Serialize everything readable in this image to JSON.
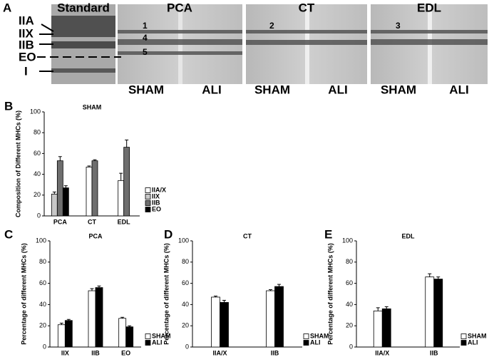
{
  "gel": {
    "panel_label": "A",
    "lanes": [
      "Standard",
      "PCA",
      "CT",
      "EDL"
    ],
    "conditions": [
      "SHAM",
      "ALI",
      "SHAM",
      "ALI",
      "SHAM",
      "ALI"
    ],
    "markers": [
      "IIA",
      "IIX",
      "IIB",
      "EO",
      "I"
    ],
    "band_numbers": [
      "1",
      "4",
      "5",
      "2",
      "3"
    ]
  },
  "chart_data": [
    {
      "type": "bar",
      "panel_label": "B",
      "title": "SHAM",
      "ylabel": "Composition of Different MHCs (%)",
      "categories": [
        "PCA",
        "CT",
        "EDL"
      ],
      "series": [
        {
          "name": "IIA/X",
          "color": "#ffffff",
          "values": [
            null,
            47,
            34
          ],
          "errors": [
            null,
            1,
            7
          ]
        },
        {
          "name": "IIX",
          "color": "#c8c8c8",
          "values": [
            21,
            null,
            null
          ],
          "errors": [
            2,
            null,
            null
          ]
        },
        {
          "name": "IIB",
          "color": "#6e6e6e",
          "values": [
            53,
            53,
            66
          ],
          "errors": [
            4,
            1,
            7
          ]
        },
        {
          "name": "EO",
          "color": "#000000",
          "values": [
            27,
            null,
            null
          ],
          "errors": [
            2,
            null,
            null
          ]
        }
      ],
      "ylim": [
        0,
        100
      ],
      "yticks": [
        0,
        20,
        40,
        60,
        80,
        100
      ]
    },
    {
      "type": "bar",
      "panel_label": "C",
      "title": "PCA",
      "ylabel": "Percentage of different MHCs (%)",
      "categories": [
        "IIX",
        "IIB",
        "EO"
      ],
      "series": [
        {
          "name": "SHAM",
          "color": "#ffffff",
          "values": [
            21,
            53,
            27
          ],
          "errors": [
            1.5,
            2,
            1
          ]
        },
        {
          "name": "ALI",
          "color": "#000000",
          "values": [
            25,
            56,
            19
          ],
          "errors": [
            1,
            1.5,
            1
          ]
        }
      ],
      "ylim": [
        0,
        100
      ],
      "yticks": [
        0,
        20,
        40,
        60,
        80,
        100
      ]
    },
    {
      "type": "bar",
      "panel_label": "D",
      "title": "CT",
      "ylabel": "Percentage of different MHCs (%)",
      "categories": [
        "IIA/X",
        "IIB"
      ],
      "series": [
        {
          "name": "SHAM",
          "color": "#ffffff",
          "values": [
            47,
            53
          ],
          "errors": [
            1,
            1
          ]
        },
        {
          "name": "ALI",
          "color": "#000000",
          "values": [
            42,
            57
          ],
          "errors": [
            2,
            2
          ]
        }
      ],
      "ylim": [
        0,
        100
      ],
      "yticks": [
        0,
        20,
        40,
        60,
        80,
        100
      ]
    },
    {
      "type": "bar",
      "panel_label": "E",
      "title": "EDL",
      "ylabel": "Percentage of different MHCs (%)",
      "categories": [
        "IIA/X",
        "IIB"
      ],
      "series": [
        {
          "name": "SHAM",
          "color": "#ffffff",
          "values": [
            34,
            66
          ],
          "errors": [
            3,
            3
          ]
        },
        {
          "name": "ALI",
          "color": "#000000",
          "values": [
            36,
            64
          ],
          "errors": [
            2,
            2
          ]
        }
      ],
      "ylim": [
        0,
        100
      ],
      "yticks": [
        0,
        20,
        40,
        60,
        80,
        100
      ]
    }
  ]
}
